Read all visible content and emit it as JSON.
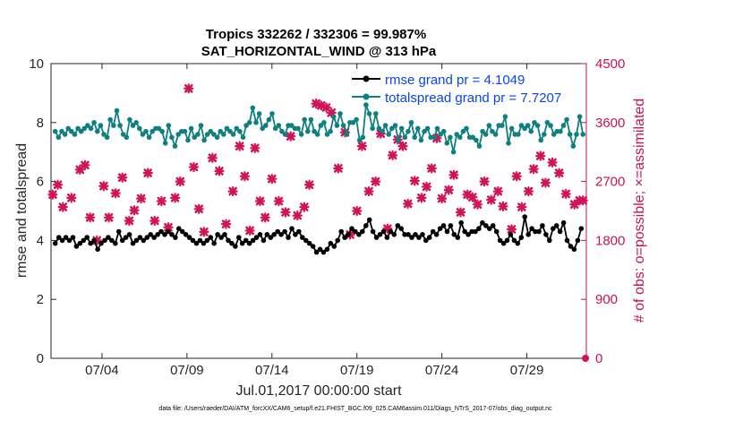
{
  "chart_data": {
    "type": "line",
    "title_line1": "Tropics 332262 / 332306 = 99.987%",
    "title_line2": "SAT_HORIZONTAL_WIND @ 313 hPa",
    "xlabel": "Jul.01,2017 00:00:00 start",
    "ylabel_left": "rmse and totalspread",
    "ylabel_right": "# of obs: o=possible; ×=assimilated",
    "footnote": "data file: /Users/raeder/DAI/ATM_forcXX/CAM6_setup/f.e21.FHIST_BGC.f09_025.CAM6assim.011/Diags_NTrS_2017-07/obs_diag_output.nc",
    "xlim": [
      0,
      31.5
    ],
    "ylim_left": [
      0,
      10
    ],
    "ylim_right": [
      0,
      4500
    ],
    "x_ticks": [
      {
        "value": 3,
        "label": "07/04"
      },
      {
        "value": 8,
        "label": "07/09"
      },
      {
        "value": 13,
        "label": "07/14"
      },
      {
        "value": 18,
        "label": "07/19"
      },
      {
        "value": 23,
        "label": "07/24"
      },
      {
        "value": 28,
        "label": "07/29"
      }
    ],
    "y_ticks_left": [
      "0",
      "2",
      "4",
      "6",
      "8",
      "10"
    ],
    "y_ticks_right": [
      "0",
      "900",
      "1800",
      "2700",
      "3600",
      "4500"
    ],
    "colors": {
      "rmse": "#000000",
      "spread": "#0f7f7f",
      "obs": "#d1145a",
      "right_axis": "#c8144e",
      "legend_text": "#0a46e6"
    },
    "series": [
      {
        "name": "rmse grand pr = 4.1049",
        "axis": "left",
        "x0": 0.25,
        "dx": 0.25,
        "values": [
          3.9,
          4.1,
          4.0,
          4.1,
          4.0,
          4.1,
          3.8,
          3.9,
          4.0,
          4.1,
          3.9,
          4.0,
          3.7,
          3.9,
          4.0,
          4.1,
          4.0,
          3.9,
          4.3,
          4.0,
          4.1,
          4.2,
          3.9,
          4.0,
          4.1,
          4.0,
          4.1,
          4.2,
          4.1,
          4.2,
          4.3,
          4.2,
          4.3,
          4.2,
          4.1,
          4.4,
          4.3,
          4.2,
          4.1,
          4.0,
          3.9,
          4.0,
          3.9,
          4.0,
          4.1,
          3.9,
          4.2,
          4.1,
          4.2,
          4.0,
          3.9,
          3.8,
          4.1,
          3.9,
          4.0,
          3.9,
          4.0,
          4.1,
          4.2,
          4.0,
          4.2,
          4.1,
          4.2,
          4.3,
          4.2,
          4.3,
          4.1,
          4.4,
          4.2,
          4.3,
          4.1,
          4.0,
          3.9,
          3.8,
          3.6,
          3.7,
          3.6,
          3.7,
          3.9,
          3.8,
          4.0,
          4.3,
          4.1,
          4.2,
          4.4,
          4.3,
          4.2,
          4.3,
          4.5,
          4.7,
          4.3,
          4.1,
          4.2,
          4.3,
          4.1,
          4.3,
          4.2,
          4.5,
          4.4,
          4.2,
          4.2,
          4.1,
          4.2,
          4.1,
          4.2,
          4.0,
          4.1,
          4.3,
          4.2,
          4.4,
          4.5,
          4.3,
          4.5,
          4.2,
          4.1,
          4.6,
          4.3,
          4.2,
          4.3,
          4.3,
          4.4,
          4.6,
          4.5,
          4.4,
          4.5,
          4.3,
          4.0,
          3.9,
          4.0,
          4.2,
          4.0,
          3.9,
          4.1,
          4.8,
          4.2,
          4.4,
          4.3,
          4.3,
          4.5,
          4.2,
          4.0,
          4.4,
          4.5,
          4.3,
          4.6,
          4.0,
          3.8,
          3.7,
          4.0,
          4.4
        ],
        "x_end": 31.2
      },
      {
        "name": "totalspread grand pr = 7.7207",
        "axis": "left",
        "x0": 0.25,
        "dx": 0.25,
        "values": [
          7.7,
          7.5,
          7.7,
          7.6,
          7.8,
          7.7,
          7.6,
          7.8,
          7.7,
          7.8,
          7.9,
          7.8,
          8.0,
          7.7,
          7.9,
          7.6,
          7.5,
          8.1,
          7.9,
          8.4,
          7.9,
          7.6,
          7.5,
          8.1,
          7.9,
          8.0,
          7.8,
          7.6,
          7.7,
          7.5,
          7.7,
          7.8,
          7.8,
          7.7,
          7.3,
          7.9,
          7.5,
          7.2,
          7.6,
          7.7,
          7.7,
          7.4,
          7.8,
          7.5,
          7.6,
          7.9,
          7.4,
          7.6,
          7.7,
          7.6,
          7.5,
          7.7,
          7.6,
          7.8,
          7.7,
          7.6,
          7.8,
          7.7,
          7.5,
          7.9,
          8.0,
          8.5,
          8.0,
          8.3,
          7.8,
          7.9,
          8.1,
          8.3,
          7.8,
          7.9,
          7.7,
          7.6,
          7.9,
          7.9,
          7.8,
          7.8,
          7.6,
          8.1,
          7.7,
          8.1,
          7.7,
          7.6,
          7.9,
          8.0,
          7.6,
          7.7,
          8.2,
          7.9,
          8.3,
          7.9,
          7.6,
          8.0,
          8.0,
          8.1,
          7.4,
          7.5,
          8.6,
          8.3,
          7.8,
          8.3,
          7.8,
          7.7,
          7.9,
          7.6,
          7.8,
          7.9,
          7.4,
          7.8,
          7.5,
          7.7,
          8.0,
          7.5,
          7.8,
          7.4,
          7.7,
          7.8,
          7.5,
          7.5,
          7.8,
          7.6,
          7.7,
          7.3,
          7.5,
          7.0,
          7.6,
          7.5,
          7.7,
          7.8,
          7.5,
          7.5,
          7.4,
          7.2,
          7.7,
          7.6,
          7.9,
          7.7,
          7.6,
          7.9,
          7.9,
          8.2,
          7.3,
          7.8,
          7.6,
          7.6,
          7.9,
          7.8,
          7.9,
          7.7,
          8.0,
          7.9,
          7.4,
          7.6,
          8.0,
          7.9,
          7.6,
          7.7,
          7.7,
          7.9,
          8.1,
          7.6,
          7.2,
          7.6,
          8.2,
          7.6
        ],
        "x_end": 31.3
      },
      {
        "name": "assimilated",
        "axis": "right",
        "marker": "x",
        "points": [
          [
            0.1,
            2500
          ],
          [
            0.4,
            2650
          ],
          [
            0.7,
            2310
          ],
          [
            1.2,
            2450
          ],
          [
            1.7,
            2880
          ],
          [
            2.0,
            2950
          ],
          [
            2.3,
            2150
          ],
          [
            2.7,
            1800
          ],
          [
            3.1,
            2630
          ],
          [
            3.4,
            2150
          ],
          [
            3.8,
            2520
          ],
          [
            4.2,
            2760
          ],
          [
            4.6,
            2100
          ],
          [
            4.9,
            2260
          ],
          [
            5.3,
            2440
          ],
          [
            5.7,
            2830
          ],
          [
            6.1,
            2100
          ],
          [
            6.5,
            2400
          ],
          [
            6.9,
            2000
          ],
          [
            7.3,
            2450
          ],
          [
            7.6,
            2700
          ],
          [
            8.1,
            4120
          ],
          [
            8.4,
            2920
          ],
          [
            8.7,
            2280
          ],
          [
            9.0,
            1930
          ],
          [
            9.5,
            3060
          ],
          [
            9.9,
            2860
          ],
          [
            10.3,
            2050
          ],
          [
            10.7,
            2550
          ],
          [
            11.1,
            3240
          ],
          [
            11.4,
            2780
          ],
          [
            11.7,
            1950
          ],
          [
            12.0,
            3210
          ],
          [
            12.3,
            2400
          ],
          [
            12.6,
            2150
          ],
          [
            13.0,
            2740
          ],
          [
            13.4,
            2400
          ],
          [
            13.8,
            2230
          ],
          [
            14.1,
            3390
          ],
          [
            14.5,
            2180
          ],
          [
            14.9,
            2310
          ],
          [
            15.2,
            2650
          ],
          [
            15.6,
            3890
          ],
          [
            15.9,
            3860
          ],
          [
            16.2,
            3830
          ],
          [
            16.5,
            3750
          ],
          [
            16.9,
            2900
          ],
          [
            17.3,
            3450
          ],
          [
            17.6,
            1890
          ],
          [
            18.0,
            2250
          ],
          [
            18.3,
            3240
          ],
          [
            18.7,
            2550
          ],
          [
            19.1,
            2700
          ],
          [
            19.4,
            3430
          ],
          [
            19.8,
            1980
          ],
          [
            20.1,
            3100
          ],
          [
            20.4,
            3340
          ],
          [
            20.7,
            3240
          ],
          [
            21.0,
            2360
          ],
          [
            21.4,
            2710
          ],
          [
            21.8,
            2450
          ],
          [
            22.1,
            2620
          ],
          [
            22.4,
            2900
          ],
          [
            22.7,
            3360
          ],
          [
            23.0,
            2440
          ],
          [
            23.4,
            2570
          ],
          [
            23.7,
            2800
          ],
          [
            24.1,
            2230
          ],
          [
            24.5,
            2500
          ],
          [
            24.8,
            2460
          ],
          [
            25.1,
            2350
          ],
          [
            25.5,
            2700
          ],
          [
            25.9,
            2420
          ],
          [
            26.3,
            2550
          ],
          [
            26.6,
            2320
          ],
          [
            27.1,
            1970
          ],
          [
            27.4,
            2780
          ],
          [
            27.7,
            2310
          ],
          [
            28.1,
            2550
          ],
          [
            28.4,
            2890
          ],
          [
            28.8,
            3090
          ],
          [
            29.1,
            2680
          ],
          [
            29.5,
            2990
          ],
          [
            29.9,
            2830
          ],
          [
            30.3,
            2510
          ],
          [
            30.8,
            2350
          ],
          [
            31.1,
            2410
          ],
          [
            31.3,
            2410
          ]
        ]
      },
      {
        "name": "possible",
        "axis": "right",
        "marker": "o",
        "points": [
          [
            31.45,
            0
          ]
        ]
      }
    ],
    "legend": {
      "position": "top-right",
      "entries": [
        "rmse grand pr = 4.1049",
        "totalspread grand pr = 7.7207"
      ]
    }
  }
}
